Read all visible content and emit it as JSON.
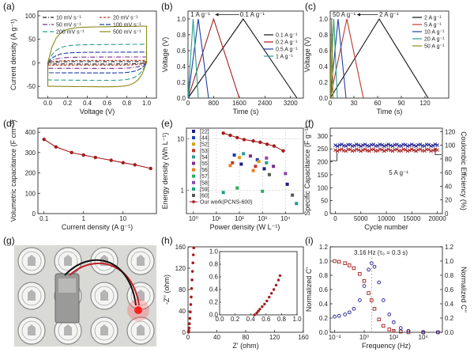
{
  "chart_data": [
    {
      "id": "a",
      "panel_label": "(a)",
      "type": "line",
      "xlabel": "Voltage (V)",
      "ylabel": "Current density (A g⁻¹)",
      "xlim": [
        -0.1,
        1.1
      ],
      "ylim": [
        -75,
        110
      ],
      "xticks": [
        0.0,
        0.2,
        0.4,
        0.6,
        0.8,
        1.0
      ],
      "xtick_labels": [
        "0.0",
        "0.2",
        "0.4",
        "0.6",
        "0.8",
        "1.0"
      ],
      "yticks": [
        -50,
        0,
        50,
        100
      ],
      "ytick_labels": [
        "-50",
        "0",
        "50",
        "100"
      ],
      "grid": false,
      "legend_position": "top",
      "legend_columns": 2,
      "series": [
        {
          "name": "10 mV s⁻¹",
          "color": "#222222",
          "dash": "5 2 1 2",
          "upper": 2.5,
          "lower": -2.5
        },
        {
          "name": "20 mV s⁻¹",
          "color": "#c0392b",
          "dash": "3 2",
          "upper": 5,
          "lower": -5
        },
        {
          "name": "50 mV s⁻¹",
          "color": "#7b2d8b",
          "dash": "6 2 1 2",
          "upper": 12,
          "lower": -12
        },
        {
          "name": "100 mV s⁻¹",
          "color": "#1f3fa8",
          "dash": "6 2",
          "upper": 22,
          "lower": -22
        },
        {
          "name": "200 mV s⁻¹",
          "color": "#2a9d8f",
          "dash": "6 3",
          "upper": 38,
          "lower": -38
        },
        {
          "name": "500 mV s⁻¹",
          "color": "#8a8a1a",
          "dash": "",
          "upper": 75,
          "lower": -52
        }
      ]
    },
    {
      "id": "b",
      "panel_label": "(b)",
      "type": "line",
      "xlabel": "Time (s)",
      "ylabel": "Voltage (V)",
      "xlim": [
        0,
        3600
      ],
      "ylim": [
        0,
        1.1
      ],
      "xticks": [
        0,
        800,
        1600,
        2400,
        3200
      ],
      "xtick_labels": [
        "0",
        "800",
        "1600",
        "2400",
        "3200"
      ],
      "yticks": [
        0,
        0.2,
        0.4,
        0.6,
        0.8,
        1.0
      ],
      "ytick_labels": [
        "0.0",
        "0.2",
        "0.4",
        "0.6",
        "0.8",
        "1.0"
      ],
      "legend_position": "right",
      "annotations": [
        "1 A g⁻¹",
        "0.1 A g⁻¹"
      ],
      "series": [
        {
          "name": "0.1 A g⁻¹",
          "color": "#111111",
          "x": [
            0,
            1720,
            3400
          ],
          "y": [
            0,
            1,
            0
          ]
        },
        {
          "name": "0.2 A g⁻¹",
          "color": "#a31c1c",
          "x": [
            0,
            800,
            1600
          ],
          "y": [
            0,
            1,
            0
          ]
        },
        {
          "name": "0.5 A g⁻¹",
          "color": "#1f3fa8",
          "x": [
            0,
            320,
            640
          ],
          "y": [
            0,
            1,
            0
          ]
        },
        {
          "name": "1 A g⁻¹",
          "color": "#2a9d8f",
          "x": [
            0,
            160,
            320
          ],
          "y": [
            0,
            1,
            0
          ]
        }
      ]
    },
    {
      "id": "c",
      "panel_label": "(c)",
      "type": "line",
      "xlabel": "Time (s)",
      "ylabel": "Voltage (V)",
      "xlim": [
        0,
        150
      ],
      "ylim": [
        0,
        1.1
      ],
      "xticks": [
        0,
        30,
        60,
        90,
        120
      ],
      "xtick_labels": [
        "0",
        "30",
        "60",
        "90",
        "120"
      ],
      "yticks": [
        0,
        0.2,
        0.4,
        0.6,
        0.8,
        1.0
      ],
      "ytick_labels": [
        "0.0",
        "0.2",
        "0.4",
        "0.6",
        "0.8",
        "1.0"
      ],
      "legend_position": "right",
      "annotations": [
        "50 A g⁻¹",
        "2 A g⁻¹"
      ],
      "series": [
        {
          "name": "2 A g⁻¹",
          "color": "#111111",
          "x": [
            0,
            62,
            124
          ],
          "y": [
            0,
            1,
            0
          ]
        },
        {
          "name": "5 A g⁻¹",
          "color": "#c0392b",
          "x": [
            0,
            21,
            42
          ],
          "y": [
            0,
            1,
            0
          ]
        },
        {
          "name": "10 A g⁻¹",
          "color": "#1f3fa8",
          "x": [
            0,
            10,
            20
          ],
          "y": [
            0,
            1,
            0
          ]
        },
        {
          "name": "20 A g⁻¹",
          "color": "#2a9d8f",
          "x": [
            0,
            4.5,
            9
          ],
          "y": [
            0,
            1,
            0
          ]
        },
        {
          "name": "50 A g⁻¹",
          "color": "#8a8a1a",
          "x": [
            0,
            1.8,
            3.6
          ],
          "y": [
            0,
            1,
            0
          ]
        }
      ]
    },
    {
      "id": "d",
      "panel_label": "(d)",
      "type": "line",
      "xlabel": "Current density (A g⁻¹)",
      "ylabel": "Volumetric capacitance (F cm⁻³)",
      "x_scale": "log",
      "xlim": [
        0.07,
        70
      ],
      "ylim": [
        0,
        420
      ],
      "xticks": [
        0.1,
        1,
        10
      ],
      "xtick_labels": [
        "0.1",
        "1",
        "10"
      ],
      "yticks": [
        0,
        100,
        200,
        300,
        400
      ],
      "ytick_labels": [
        "0",
        "100",
        "200",
        "300",
        "400"
      ],
      "series": [
        {
          "name": "",
          "color": "#a31c1c",
          "x": [
            0.1,
            0.2,
            0.5,
            1,
            2,
            5,
            10,
            20,
            50
          ],
          "y": [
            365,
            328,
            300,
            288,
            276,
            262,
            250,
            240,
            222
          ]
        }
      ]
    },
    {
      "id": "e",
      "panel_label": "(e)",
      "type": "scatter",
      "xlabel": "Power density (W L⁻¹)",
      "ylabel": "Energy density (Wh L⁻¹)",
      "x_scale": "log",
      "y_scale": "log",
      "xlim": [
        0.5,
        60000
      ],
      "ylim": [
        0.35,
        16
      ],
      "xticks": [
        1,
        10,
        100,
        1000,
        10000
      ],
      "xtick_labels": [
        "10⁰",
        "10¹",
        "10²",
        "10³",
        "10⁴"
      ],
      "yticks": [
        1,
        10
      ],
      "ytick_labels": [
        "1",
        "10"
      ],
      "grid": true,
      "legend_position": "left",
      "legend": [
        "[22]",
        "[44]",
        "[52]",
        "[53]",
        "[54]",
        "[55]",
        "[56]",
        "[57]",
        "[58]",
        "[59]",
        "[60]",
        "Our work(PCNS-600)"
      ],
      "series": [
        {
          "name": "Our work(PCNS-600)",
          "color": "#a31c1c",
          "x": [
            20,
            40,
            80,
            160,
            400,
            800,
            1600,
            3200,
            8000
          ],
          "y": [
            12.8,
            11.6,
            10.5,
            9.6,
            9.0,
            8.5,
            7.8,
            7.2,
            5.8
          ]
        },
        {
          "name": "[22]",
          "color": "#1a1a8c",
          "x": [
            120,
            1200,
            12000
          ],
          "y": [
            3.2,
            2.6,
            1.3
          ]
        },
        {
          "name": "[44]",
          "color": "#1f3fa8",
          "x": [
            60,
            600
          ],
          "y": [
            4.8,
            3.9
          ]
        },
        {
          "name": "[52]",
          "color": "#d4a017",
          "x": [
            100,
            700
          ],
          "y": [
            4.3,
            3.6
          ]
        },
        {
          "name": "[53]",
          "color": "#c0392b",
          "x": [
            50,
            500
          ],
          "y": [
            3.4,
            2.9
          ]
        },
        {
          "name": "[54]",
          "color": "#2a9d8f",
          "x": [
            150,
            1500
          ],
          "y": [
            5.1,
            3.4
          ]
        },
        {
          "name": "[55]",
          "color": "#7b2d8b",
          "x": [
            300,
            3000
          ],
          "y": [
            4.6,
            2.9
          ]
        },
        {
          "name": "[56]",
          "color": "#e67e22",
          "x": [
            40,
            400
          ],
          "y": [
            3.0,
            2.4
          ]
        },
        {
          "name": "[57]",
          "color": "#27ae60",
          "x": [
            80,
            1000
          ],
          "y": [
            1.1,
            0.95
          ]
        },
        {
          "name": "[58]",
          "color": "#8e44ad",
          "x": [
            1500,
            10000
          ],
          "y": [
            4.2,
            2.1
          ]
        },
        {
          "name": "[59]",
          "color": "#16a085",
          "x": [
            20,
            30000
          ],
          "y": [
            0.9,
            0.55
          ]
        },
        {
          "name": "[60]",
          "color": "#555555",
          "x": [
            2000,
            20000
          ],
          "y": [
            2.0,
            0.8
          ]
        }
      ]
    },
    {
      "id": "f",
      "panel_label": "(f)",
      "type": "scatter",
      "xlabel": "Cycle number",
      "ylabel": "Specific Capacitance (F g⁻¹)",
      "ylabel_right": "Coulombic Efficiency (%)",
      "xlim": [
        -1000,
        21000
      ],
      "ylim": [
        0,
        330
      ],
      "ylim_right": [
        0,
        125
      ],
      "xticks": [
        0,
        5000,
        10000,
        15000,
        20000
      ],
      "xtick_labels": [
        "0",
        "5000",
        "10000",
        "15000",
        "20000"
      ],
      "yticks": [
        0,
        50,
        100,
        150,
        200,
        250,
        300
      ],
      "ytick_labels": [
        "0",
        "50",
        "100",
        "150",
        "200",
        "250",
        "300"
      ],
      "yticks_right": [
        0,
        20,
        40,
        60,
        80,
        100,
        120
      ],
      "ytick_labels_right": [
        "0",
        "20",
        "40",
        "60",
        "80",
        "100",
        "120"
      ],
      "annotations": [
        "5 A g⁻¹"
      ],
      "series": [
        {
          "name": "Specific Capacitance",
          "axis": "left",
          "color": "#a31c1c",
          "x_start": 0,
          "x_end": 20000,
          "y": 245
        },
        {
          "name": "Coulombic Efficiency",
          "axis": "right",
          "color": "#1a1a8c",
          "x_start": 0,
          "x_end": 20000,
          "y": 100
        }
      ]
    },
    {
      "id": "g",
      "panel_label": "(g)",
      "type": "photo"
    },
    {
      "id": "h",
      "panel_label": "(h)",
      "type": "scatter",
      "xlabel": "Z' (ohm)",
      "ylabel": "-Z'' (ohm)",
      "xlim": [
        0,
        160
      ],
      "ylim": [
        0,
        160
      ],
      "xticks": [
        0,
        40,
        80,
        120,
        160
      ],
      "xtick_labels": [
        "0",
        "40",
        "80",
        "120",
        "160"
      ],
      "yticks": [
        0,
        40,
        80,
        120,
        160
      ],
      "ytick_labels": [
        "0",
        "40",
        "80",
        "120",
        "160"
      ],
      "series": [
        {
          "name": "",
          "color": "#a31c1c",
          "x": [
            0.5,
            1.0,
            1.5,
            2.0,
            2.6,
            3.2,
            3.8,
            4.4,
            5.0,
            5.6,
            6.2,
            6.8,
            7.4,
            8.0
          ],
          "y": [
            0.2,
            3,
            8,
            16,
            26,
            38,
            52,
            66,
            82,
            98,
            114,
            130,
            145,
            158
          ]
        }
      ],
      "inset": {
        "xlim": [
          0,
          1.0
        ],
        "ylim": [
          0,
          1.0
        ],
        "xticks": [
          0,
          0.2,
          0.4,
          0.6,
          0.8,
          1.0
        ],
        "xtick_labels": [
          "0.0",
          "0.2",
          "0.4",
          "0.6",
          "0.8",
          "1.0"
        ],
        "yticks": [
          0,
          0.2,
          0.4,
          0.6,
          0.8,
          1.0
        ],
        "ytick_labels": [
          "0.0",
          "0.2",
          "0.4",
          "0.6",
          "0.8",
          "1.0"
        ],
        "x": [
          0.45,
          0.48,
          0.5,
          0.52,
          0.55,
          0.58,
          0.61,
          0.64,
          0.67,
          0.7,
          0.73,
          0.76,
          0.78
        ],
        "y": [
          0.0,
          0.03,
          0.06,
          0.09,
          0.13,
          0.17,
          0.22,
          0.28,
          0.34,
          0.4,
          0.47,
          0.55,
          0.62
        ]
      }
    },
    {
      "id": "i",
      "panel_label": "(i)",
      "type": "scatter",
      "xlabel": "Frequency (Hz)",
      "ylabel": "Normalized C'",
      "ylabel_right": "Normalized C''",
      "x_scale": "log",
      "xlim": [
        0.005,
        200000
      ],
      "ylim": [
        0,
        1.2
      ],
      "ylim_right": [
        0,
        1.2
      ],
      "xticks": [
        0.01,
        1,
        100,
        10000
      ],
      "xtick_labels": [
        "10⁻²",
        "10⁰",
        "10²",
        "10⁴"
      ],
      "yticks": [
        0,
        0.2,
        0.4,
        0.6,
        0.8,
        1.0,
        1.2
      ],
      "ytick_labels": [
        "0.0",
        "0.2",
        "0.4",
        "0.6",
        "0.8",
        "1.0",
        "1.2"
      ],
      "yticks_right": [
        0,
        0.2,
        0.4,
        0.6,
        0.8,
        1.0,
        1.2
      ],
      "ytick_labels_right": [
        "0.0",
        "0.2",
        "0.4",
        "0.6",
        "0.8",
        "1.0",
        "1.2"
      ],
      "annotations": [
        "3.16 Hz (τ₀ = 0.3 s)"
      ],
      "series": [
        {
          "name": "Normalized C'",
          "axis": "left",
          "color": "#a31c1c",
          "x": [
            0.01,
            0.02,
            0.05,
            0.1,
            0.2,
            0.5,
            1,
            2,
            3.16,
            5,
            10,
            20,
            50,
            100,
            300,
            1000,
            10000,
            100000
          ],
          "y": [
            1.0,
            0.99,
            0.97,
            0.94,
            0.9,
            0.82,
            0.72,
            0.55,
            0.45,
            0.33,
            0.18,
            0.09,
            0.04,
            0.02,
            0.01,
            0.0,
            0.0,
            0.0
          ]
        },
        {
          "name": "Normalized C''",
          "axis": "right",
          "color": "#1a1a8c",
          "x": [
            0.01,
            0.02,
            0.05,
            0.1,
            0.2,
            0.5,
            1,
            2,
            3.16,
            5,
            10,
            20,
            50,
            100,
            300,
            1000,
            10000,
            100000
          ],
          "y": [
            0.22,
            0.23,
            0.25,
            0.28,
            0.33,
            0.45,
            0.65,
            0.88,
            0.97,
            0.92,
            0.7,
            0.45,
            0.25,
            0.14,
            0.06,
            0.02,
            0.0,
            0.0
          ]
        }
      ]
    }
  ]
}
